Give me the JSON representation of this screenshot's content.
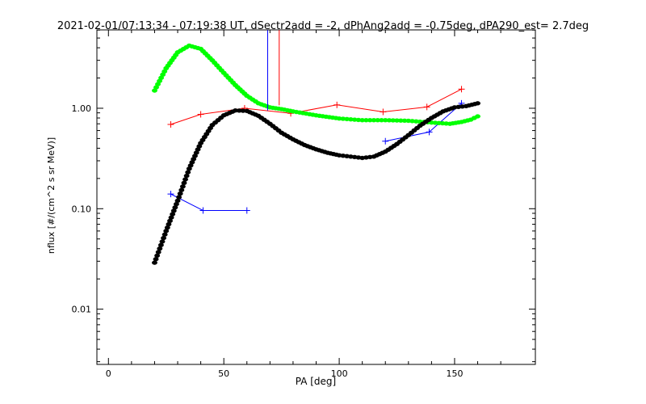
{
  "chart_data": {
    "type": "line",
    "title": "2021-02-01/07:13:34 - 07:19:38 UT, dSectr2add = -2, dPhAng2add = -0.75deg, dPA290_est=    2.7deg",
    "xlabel": "PA [deg]",
    "ylabel": "nflux [#/(cm^2 s sr MeV)]",
    "xlim": [
      -5,
      185
    ],
    "ylim_log10": [
      -2.55,
      0.78
    ],
    "y_scale": "log",
    "grid": false,
    "x_ticks": [
      {
        "value": 0,
        "label": "0"
      },
      {
        "value": 50,
        "label": "50"
      },
      {
        "value": 100,
        "label": "100"
      },
      {
        "value": 150,
        "label": "150"
      }
    ],
    "y_ticks": [
      {
        "value": 0.01,
        "label": "0.01"
      },
      {
        "value": 0.1,
        "label": "0.10"
      },
      {
        "value": 1,
        "label": "1.00"
      }
    ],
    "series": [
      {
        "name": "",
        "color": "#ff0000",
        "style": "line-plus",
        "points": [
          [
            27,
            0.69
          ],
          [
            40,
            0.87
          ],
          [
            59,
            1.0
          ],
          [
            79,
            0.89
          ],
          [
            99,
            1.08
          ],
          [
            119,
            0.92
          ],
          [
            138,
            1.03
          ],
          [
            153,
            1.55
          ]
        ]
      },
      {
        "name": "",
        "color": "#0000ff",
        "style": "line-plus",
        "points": [
          [
            27,
            0.14
          ],
          [
            41,
            0.096
          ],
          [
            60,
            0.096
          ]
        ]
      },
      {
        "name": "",
        "color": "#0000ff",
        "style": "line-plus",
        "points": [
          [
            120,
            0.47
          ],
          [
            139,
            0.58
          ],
          [
            153,
            1.12
          ]
        ]
      },
      {
        "name": "",
        "color": "#00ff00",
        "style": "thick-dots",
        "points": [
          [
            20,
            1.5
          ],
          [
            25,
            2.5
          ],
          [
            30,
            3.6
          ],
          [
            35,
            4.2
          ],
          [
            40,
            3.9
          ],
          [
            45,
            3.0
          ],
          [
            50,
            2.25
          ],
          [
            55,
            1.7
          ],
          [
            60,
            1.33
          ],
          [
            65,
            1.12
          ],
          [
            70,
            1.02
          ],
          [
            75,
            0.98
          ],
          [
            80,
            0.93
          ],
          [
            90,
            0.85
          ],
          [
            100,
            0.79
          ],
          [
            110,
            0.76
          ],
          [
            120,
            0.76
          ],
          [
            130,
            0.75
          ],
          [
            140,
            0.72
          ],
          [
            148,
            0.7
          ],
          [
            153,
            0.73
          ],
          [
            157,
            0.77
          ],
          [
            160,
            0.83
          ]
        ]
      },
      {
        "name": "",
        "color": "#000000",
        "style": "thick-dots",
        "points": [
          [
            20,
            0.029
          ],
          [
            25,
            0.06
          ],
          [
            30,
            0.12
          ],
          [
            35,
            0.25
          ],
          [
            40,
            0.45
          ],
          [
            45,
            0.68
          ],
          [
            50,
            0.85
          ],
          [
            55,
            0.95
          ],
          [
            60,
            0.94
          ],
          [
            65,
            0.84
          ],
          [
            70,
            0.7
          ],
          [
            75,
            0.57
          ],
          [
            80,
            0.49
          ],
          [
            85,
            0.43
          ],
          [
            90,
            0.39
          ],
          [
            95,
            0.36
          ],
          [
            100,
            0.34
          ],
          [
            105,
            0.33
          ],
          [
            110,
            0.32
          ],
          [
            115,
            0.33
          ],
          [
            120,
            0.37
          ],
          [
            125,
            0.44
          ],
          [
            130,
            0.54
          ],
          [
            135,
            0.67
          ],
          [
            140,
            0.8
          ],
          [
            145,
            0.93
          ],
          [
            150,
            1.02
          ],
          [
            155,
            1.05
          ],
          [
            160,
            1.12
          ]
        ]
      },
      {
        "name": "",
        "color": "#0000ff",
        "style": "vertical-spike",
        "points": [
          [
            69,
            0.95
          ],
          [
            69,
            6.0
          ]
        ]
      },
      {
        "name": "",
        "color": "#ff0000",
        "style": "vertical-spike",
        "points": [
          [
            74,
            1.07
          ],
          [
            74,
            6.0
          ]
        ]
      }
    ]
  }
}
